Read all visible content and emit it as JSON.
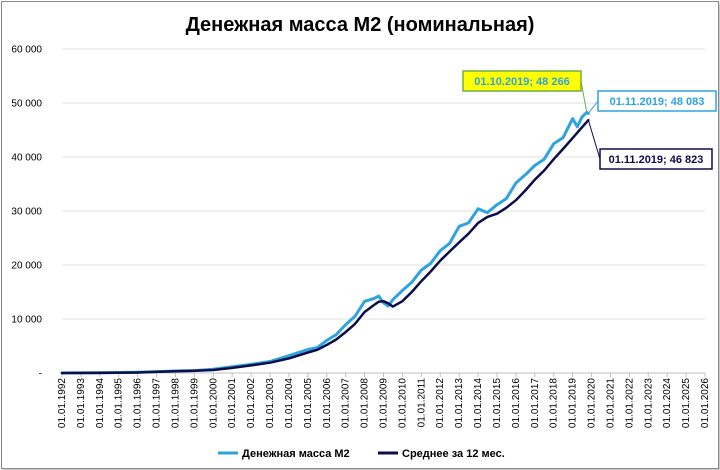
{
  "chart_data": {
    "type": "line",
    "title": "Денежная масса М2 (номинальная)",
    "xlabel": "",
    "ylabel": "",
    "ylim": [
      0,
      60000
    ],
    "xlim": [
      "1992-01-01",
      "2026-01-01"
    ],
    "grid": true,
    "legend": "bottom",
    "y_ticks": [
      "-",
      "10 000",
      "20 000",
      "30 000",
      "40 000",
      "50 000",
      "60 000"
    ],
    "x_ticks": [
      "01.01.1992",
      "01.01.1993",
      "01.01.1994",
      "01.01.1995",
      "01.01.1996",
      "01.01.1997",
      "01.01.1998",
      "01.01.1999",
      "01.01.2000",
      "01.01.2001",
      "01.01.2002",
      "01.01.2003",
      "01.01.2004",
      "01.01.2005",
      "01.01.2006",
      "01.01.2007",
      "01.01.2008",
      "01.01.2009",
      "01.01.2010",
      "01.01.2011",
      "01.01.2012",
      "01.01.2013",
      "01.01.2014",
      "01.01.2015",
      "01.01.2016",
      "01.01.2017",
      "01.01.2018",
      "01.01.2019",
      "01.01.2020",
      "01.01.2021",
      "01.01.2022",
      "01.01.2023",
      "01.01.2024",
      "01.01.2025",
      "01.01.2026"
    ],
    "series": [
      {
        "name": "Денежная масса М2",
        "color": "#2ea3e0",
        "x": [
          "1992-01-01",
          "1994-01-01",
          "1996-01-01",
          "1998-01-01",
          "1999-01-01",
          "2000-01-01",
          "2001-01-01",
          "2002-01-01",
          "2003-01-01",
          "2004-01-01",
          "2005-01-01",
          "2005-07-01",
          "2006-01-01",
          "2006-07-01",
          "2007-01-01",
          "2007-07-01",
          "2008-01-01",
          "2008-07-01",
          "2008-10-01",
          "2009-01-01",
          "2009-04-01",
          "2009-07-01",
          "2010-01-01",
          "2010-07-01",
          "2011-01-01",
          "2011-07-01",
          "2012-01-01",
          "2012-07-01",
          "2013-01-01",
          "2013-07-01",
          "2014-01-01",
          "2014-07-01",
          "2015-01-01",
          "2015-07-01",
          "2016-01-01",
          "2016-07-01",
          "2017-01-01",
          "2017-07-01",
          "2018-01-01",
          "2018-07-01",
          "2019-01-01",
          "2019-04-01",
          "2019-07-01",
          "2019-10-01",
          "2019-11-01"
        ],
        "y": [
          0,
          30,
          130,
          370,
          450,
          710,
          1150,
          1610,
          2130,
          3200,
          4350,
          4700,
          6030,
          7100,
          8970,
          10500,
          13270,
          13800,
          14250,
          12980,
          12400,
          13600,
          15270,
          16800,
          19050,
          20300,
          22640,
          24000,
          27160,
          27800,
          30400,
          29700,
          31160,
          32300,
          35180,
          36700,
          38420,
          39600,
          42440,
          43600,
          47110,
          45600,
          47400,
          48266,
          48083
        ]
      },
      {
        "name": "Среднее за 12 мес.",
        "color": "#0d0d4a",
        "x": [
          "1992-01-01",
          "1994-01-01",
          "1996-01-01",
          "1998-01-01",
          "1999-01-01",
          "2000-01-01",
          "2001-01-01",
          "2002-01-01",
          "2003-01-01",
          "2004-01-01",
          "2005-01-01",
          "2005-07-01",
          "2006-01-01",
          "2006-07-01",
          "2007-01-01",
          "2007-07-01",
          "2008-01-01",
          "2008-07-01",
          "2008-10-01",
          "2009-01-01",
          "2009-04-01",
          "2009-07-01",
          "2010-01-01",
          "2010-07-01",
          "2011-01-01",
          "2011-07-01",
          "2012-01-01",
          "2012-07-01",
          "2013-01-01",
          "2013-07-01",
          "2014-01-01",
          "2014-07-01",
          "2015-01-01",
          "2015-07-01",
          "2016-01-01",
          "2016-07-01",
          "2017-01-01",
          "2017-07-01",
          "2018-01-01",
          "2018-07-01",
          "2019-01-01",
          "2019-07-01",
          "2019-11-01"
        ],
        "y": [
          0,
          20,
          100,
          320,
          420,
          560,
          950,
          1400,
          1900,
          2700,
          3800,
          4300,
          5200,
          6200,
          7600,
          9100,
          11300,
          12600,
          13200,
          13300,
          12900,
          12300,
          13300,
          15000,
          17000,
          18800,
          20800,
          22500,
          24200,
          25800,
          27800,
          28900,
          29500,
          30600,
          32000,
          33800,
          35800,
          37500,
          39600,
          41500,
          43500,
          45500,
          46823
        ]
      }
    ],
    "annotations": [
      {
        "text": "01.10.2019;  48 266",
        "x": "2019-10-01",
        "y": 48266,
        "fill": "#ffff00",
        "border": "#70ad47",
        "color": "#2ea3e0"
      },
      {
        "text": "01.11.2019;  48 083",
        "x": "2019-11-01",
        "y": 48083,
        "fill": "#ffffff",
        "border": "#2ea3e0",
        "color": "#2ea3e0"
      },
      {
        "text": "01.11.2019; 46 823",
        "x": "2019-11-01",
        "y": 46823,
        "fill": "#ffffff",
        "border": "#0d0d4a",
        "color": "#0d0d4a"
      }
    ]
  }
}
